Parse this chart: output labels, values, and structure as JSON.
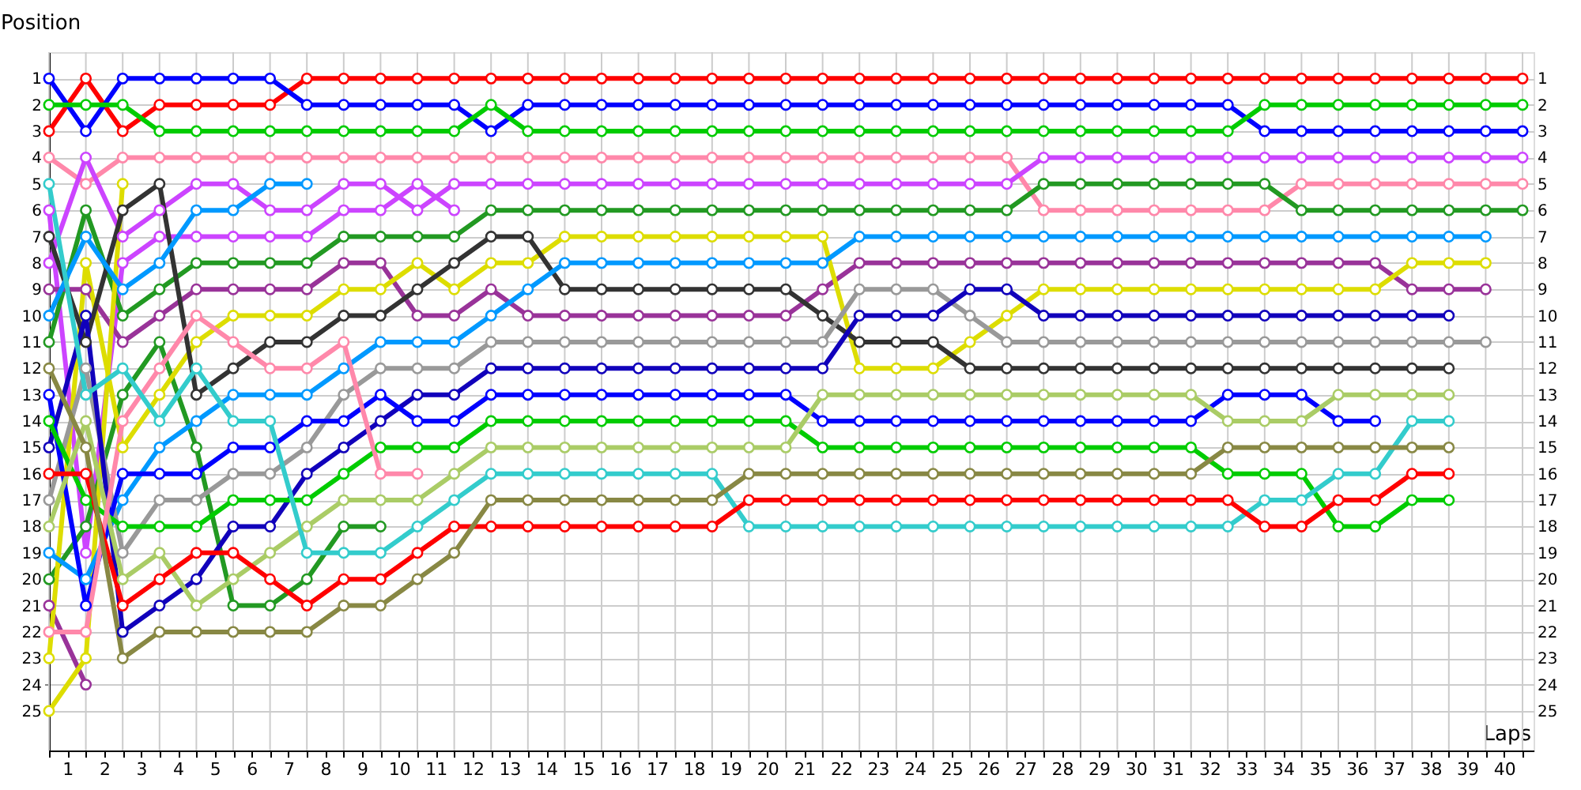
{
  "chart_data": {
    "type": "line",
    "xlabel": "Laps",
    "ylabel": "Position",
    "x": [
      0,
      1,
      2,
      3,
      4,
      5,
      6,
      7,
      8,
      9,
      10,
      11,
      12,
      13,
      14,
      15,
      16,
      17,
      18,
      19,
      20,
      21,
      22,
      23,
      24,
      25,
      26,
      27,
      28,
      29,
      30,
      31,
      32,
      33,
      34,
      35,
      36,
      37,
      38,
      39,
      40
    ],
    "xlim": [
      0,
      40.3
    ],
    "ylim": [
      26.5,
      0
    ],
    "y2lim": [
      26.5,
      0
    ],
    "xticks": [
      {
        "value": 0,
        "label": null
      },
      {
        "value": 1,
        "label": null
      },
      {
        "value": 2,
        "label": null
      },
      {
        "value": 3,
        "label": null
      },
      {
        "value": 4,
        "label": null
      },
      {
        "value": 5,
        "label": null
      },
      {
        "value": 6,
        "label": null
      },
      {
        "value": 7,
        "label": null
      },
      {
        "value": 8,
        "label": null
      },
      {
        "value": 9,
        "label": null
      },
      {
        "value": 10,
        "label": null
      },
      {
        "value": 11,
        "label": null
      },
      {
        "value": 12,
        "label": null
      },
      {
        "value": 13,
        "label": null
      },
      {
        "value": 14,
        "label": null
      },
      {
        "value": 15,
        "label": null
      },
      {
        "value": 16,
        "label": null
      },
      {
        "value": 17,
        "label": null
      },
      {
        "value": 18,
        "label": null
      },
      {
        "value": 19,
        "label": null
      },
      {
        "value": 20,
        "label": null
      },
      {
        "value": 21,
        "label": null
      },
      {
        "value": 22,
        "label": null
      },
      {
        "value": 23,
        "label": null
      },
      {
        "value": 24,
        "label": null
      },
      {
        "value": 25,
        "label": null
      },
      {
        "value": 26,
        "label": null
      },
      {
        "value": 27,
        "label": null
      },
      {
        "value": 28,
        "label": null
      },
      {
        "value": 29,
        "label": null
      },
      {
        "value": 30,
        "label": null
      },
      {
        "value": 31,
        "label": null
      },
      {
        "value": 32,
        "label": null
      },
      {
        "value": 33,
        "label": null
      },
      {
        "value": 34,
        "label": null
      },
      {
        "value": 35,
        "label": null
      },
      {
        "value": 36,
        "label": null
      },
      {
        "value": 37,
        "label": null
      },
      {
        "value": 38,
        "label": null
      },
      {
        "value": 39,
        "label": null
      },
      {
        "value": 40,
        "label": null
      },
      {
        "value": 0.5,
        "label": "1"
      },
      {
        "value": 1.5,
        "label": "2"
      },
      {
        "value": 2.5,
        "label": "3"
      },
      {
        "value": 3.5,
        "label": "4"
      },
      {
        "value": 4.5,
        "label": "5"
      },
      {
        "value": 5.5,
        "label": "6"
      },
      {
        "value": 6.5,
        "label": "7"
      },
      {
        "value": 7.5,
        "label": "8"
      },
      {
        "value": 8.5,
        "label": "9"
      },
      {
        "value": 9.5,
        "label": "10"
      },
      {
        "value": 10.5,
        "label": "11"
      },
      {
        "value": 11.5,
        "label": "12"
      },
      {
        "value": 12.5,
        "label": "13"
      },
      {
        "value": 13.5,
        "label": "14"
      },
      {
        "value": 14.5,
        "label": "15"
      },
      {
        "value": 15.5,
        "label": "16"
      },
      {
        "value": 16.5,
        "label": "17"
      },
      {
        "value": 17.5,
        "label": "18"
      },
      {
        "value": 18.5,
        "label": "19"
      },
      {
        "value": 19.5,
        "label": "20"
      },
      {
        "value": 20.5,
        "label": "21"
      },
      {
        "value": 21.5,
        "label": "22"
      },
      {
        "value": 22.5,
        "label": "23"
      },
      {
        "value": 23.5,
        "label": "24"
      },
      {
        "value": 24.5,
        "label": "25"
      },
      {
        "value": 25.5,
        "label": "26"
      },
      {
        "value": 26.5,
        "label": "27"
      },
      {
        "value": 27.5,
        "label": "28"
      },
      {
        "value": 28.5,
        "label": "29"
      },
      {
        "value": 29.5,
        "label": "30"
      },
      {
        "value": 30.5,
        "label": "31"
      },
      {
        "value": 31.5,
        "label": "32"
      },
      {
        "value": 32.5,
        "label": "33"
      },
      {
        "value": 33.5,
        "label": "34"
      },
      {
        "value": 34.5,
        "label": "35"
      },
      {
        "value": 35.5,
        "label": "36"
      },
      {
        "value": 36.5,
        "label": "37"
      },
      {
        "value": 37.5,
        "label": "38"
      },
      {
        "value": 38.5,
        "label": "39"
      },
      {
        "value": 39.5,
        "label": "40"
      }
    ],
    "yticks": [
      1,
      2,
      3,
      4,
      5,
      6,
      7,
      8,
      9,
      10,
      11,
      12,
      13,
      14,
      15,
      16,
      17,
      18,
      19,
      20,
      21,
      22,
      23,
      24,
      25
    ],
    "y2ticks": [
      1,
      2,
      3,
      4,
      5,
      6,
      7,
      8,
      9,
      10,
      11,
      12,
      13,
      14,
      15,
      16,
      17,
      18,
      19,
      20,
      21,
      22,
      23,
      24,
      25
    ],
    "grid": true,
    "legend": false,
    "marker": "circle",
    "line_style": "solid",
    "series": [
      {
        "color": "#ff0000",
        "values": [
          3,
          1,
          3,
          2,
          2,
          2,
          2,
          1,
          1,
          1,
          1,
          1,
          1,
          1,
          1,
          1,
          1,
          1,
          1,
          1,
          1,
          1,
          1,
          1,
          1,
          1,
          1,
          1,
          1,
          1,
          1,
          1,
          1,
          1,
          1,
          1,
          1,
          1,
          1,
          1,
          1
        ]
      },
      {
        "color": "#0000ff",
        "values": [
          1,
          3,
          1,
          1,
          1,
          1,
          1,
          2,
          2,
          2,
          2,
          2,
          3,
          2,
          2,
          2,
          2,
          2,
          2,
          2,
          2,
          2,
          2,
          2,
          2,
          2,
          2,
          2,
          2,
          2,
          2,
          2,
          2,
          3,
          3,
          3,
          3,
          3,
          3,
          3,
          3
        ]
      },
      {
        "color": "#00cc00",
        "values": [
          2,
          2,
          2,
          3,
          3,
          3,
          3,
          3,
          3,
          3,
          3,
          3,
          2,
          3,
          3,
          3,
          3,
          3,
          3,
          3,
          3,
          3,
          3,
          3,
          3,
          3,
          3,
          3,
          3,
          3,
          3,
          3,
          3,
          2,
          2,
          2,
          2,
          2,
          2,
          2,
          2
        ]
      },
      {
        "color": "#ff88aa",
        "values": [
          4,
          5,
          4,
          4,
          4,
          4,
          4,
          4,
          4,
          4,
          4,
          4,
          4,
          4,
          4,
          4,
          4,
          4,
          4,
          4,
          4,
          4,
          4,
          4,
          4,
          4,
          4,
          6,
          6,
          6,
          6,
          6,
          6,
          6,
          5,
          5,
          5,
          5,
          5,
          5,
          5
        ]
      },
      {
        "color": "#cc44ff",
        "values": [
          8,
          4,
          7,
          6,
          5,
          5,
          6,
          6,
          5,
          5,
          6,
          5,
          5,
          5,
          5,
          5,
          5,
          5,
          5,
          5,
          5,
          5,
          5,
          5,
          5,
          5,
          5,
          4,
          4,
          4,
          4,
          4,
          4,
          4,
          4,
          4,
          4,
          4,
          4,
          4,
          4
        ]
      },
      {
        "color": "#cc44ff",
        "values": [
          6,
          19,
          8,
          7,
          7,
          7,
          7,
          7,
          6,
          6,
          5,
          6,
          null,
          null,
          null,
          null,
          null,
          null,
          null,
          null,
          null,
          null,
          null,
          null,
          null,
          null,
          null,
          null,
          null,
          null,
          null,
          null,
          null,
          null,
          null,
          null,
          null,
          null,
          null,
          null,
          null
        ]
      },
      {
        "color": "#229922",
        "values": [
          11,
          6,
          10,
          9,
          8,
          8,
          8,
          8,
          7,
          7,
          7,
          7,
          6,
          6,
          6,
          6,
          6,
          6,
          6,
          6,
          6,
          6,
          6,
          6,
          6,
          6,
          6,
          5,
          5,
          5,
          5,
          5,
          5,
          5,
          6,
          6,
          6,
          6,
          6,
          6,
          6
        ]
      },
      {
        "color": "#229922",
        "values": [
          20,
          18,
          13,
          11,
          15,
          21,
          21,
          20,
          18,
          18,
          null,
          null,
          null,
          null,
          null,
          null,
          null,
          null,
          null,
          null,
          null,
          null,
          null,
          null,
          null,
          null,
          null,
          null,
          null,
          null,
          null,
          null,
          null,
          null,
          null,
          null,
          null,
          null,
          null,
          null,
          null
        ]
      },
      {
        "color": "#993399",
        "values": [
          9,
          9,
          11,
          10,
          9,
          9,
          9,
          9,
          8,
          8,
          10,
          10,
          9,
          10,
          10,
          10,
          10,
          10,
          10,
          10,
          10,
          9,
          8,
          8,
          8,
          8,
          8,
          8,
          8,
          8,
          8,
          8,
          8,
          8,
          8,
          8,
          8,
          9,
          9,
          9,
          null
        ]
      },
      {
        "color": "#993399",
        "values": [
          21,
          24,
          null,
          null,
          null,
          null,
          null,
          null,
          null,
          null,
          null,
          null,
          null,
          null,
          null,
          null,
          null,
          null,
          null,
          null,
          null,
          null,
          null,
          null,
          null,
          null,
          null,
          null,
          null,
          null,
          null,
          null,
          null,
          null,
          null,
          null,
          null,
          null,
          null,
          null,
          null
        ]
      },
      {
        "color": "#dddd00",
        "values": [
          23,
          8,
          15,
          13,
          11,
          10,
          10,
          10,
          9,
          9,
          8,
          9,
          8,
          8,
          7,
          7,
          7,
          7,
          7,
          7,
          7,
          7,
          12,
          12,
          12,
          11,
          10,
          9,
          9,
          9,
          9,
          9,
          9,
          9,
          9,
          9,
          9,
          8,
          8,
          8,
          null
        ]
      },
      {
        "color": "#dddd00",
        "values": [
          25,
          23,
          5,
          null,
          null,
          null,
          null,
          null,
          null,
          null,
          null,
          null,
          null,
          null,
          null,
          null,
          null,
          null,
          null,
          null,
          null,
          null,
          null,
          null,
          null,
          null,
          null,
          null,
          null,
          null,
          null,
          null,
          null,
          null,
          null,
          null,
          null,
          null,
          null,
          null,
          null
        ]
      },
      {
        "color": "#333333",
        "values": [
          7,
          11,
          6,
          5,
          13,
          12,
          11,
          11,
          10,
          10,
          9,
          8,
          7,
          7,
          9,
          9,
          9,
          9,
          9,
          9,
          9,
          10,
          11,
          11,
          11,
          12,
          12,
          12,
          12,
          12,
          12,
          12,
          12,
          12,
          12,
          12,
          12,
          12,
          12,
          null,
          null
        ]
      },
      {
        "color": "#0099ff",
        "values": [
          10,
          7,
          9,
          8,
          6,
          6,
          5,
          5,
          null,
          null,
          null,
          null,
          null,
          null,
          null,
          null,
          null,
          null,
          null,
          null,
          null,
          null,
          null,
          null,
          null,
          null,
          null,
          null,
          null,
          null,
          null,
          null,
          null,
          null,
          null,
          null,
          null,
          null,
          null,
          null,
          null
        ]
      },
      {
        "color": "#0099ff",
        "values": [
          19,
          20,
          17,
          15,
          14,
          13,
          13,
          13,
          12,
          11,
          11,
          11,
          10,
          9,
          8,
          8,
          8,
          8,
          8,
          8,
          8,
          8,
          7,
          7,
          7,
          7,
          7,
          7,
          7,
          7,
          7,
          7,
          7,
          7,
          7,
          7,
          7,
          7,
          7,
          7,
          null
        ]
      },
      {
        "color": "#999999",
        "values": [
          17,
          12,
          19,
          17,
          17,
          16,
          16,
          15,
          13,
          12,
          12,
          12,
          11,
          11,
          11,
          11,
          11,
          11,
          11,
          11,
          11,
          11,
          9,
          9,
          9,
          10,
          11,
          11,
          11,
          11,
          11,
          11,
          11,
          11,
          11,
          11,
          11,
          11,
          11,
          11,
          null
        ]
      },
      {
        "color": "#1100bb",
        "values": [
          15,
          10,
          22,
          21,
          20,
          18,
          18,
          16,
          15,
          14,
          13,
          13,
          12,
          12,
          12,
          12,
          12,
          12,
          12,
          12,
          12,
          12,
          10,
          10,
          10,
          9,
          9,
          10,
          10,
          10,
          10,
          10,
          10,
          10,
          10,
          10,
          10,
          10,
          10,
          null,
          null
        ]
      },
      {
        "color": "#0000ff",
        "values": [
          13,
          21,
          16,
          16,
          16,
          15,
          15,
          14,
          14,
          13,
          14,
          14,
          13,
          13,
          13,
          13,
          13,
          13,
          13,
          13,
          13,
          14,
          14,
          14,
          14,
          14,
          14,
          14,
          14,
          14,
          14,
          14,
          13,
          13,
          13,
          14,
          14,
          null,
          null,
          null,
          null
        ]
      },
      {
        "color": "#00cc00",
        "values": [
          14,
          17,
          18,
          18,
          18,
          17,
          17,
          17,
          16,
          15,
          15,
          15,
          14,
          14,
          14,
          14,
          14,
          14,
          14,
          14,
          14,
          15,
          15,
          15,
          15,
          15,
          15,
          15,
          15,
          15,
          15,
          15,
          16,
          16,
          16,
          18,
          18,
          17,
          17,
          null,
          null
        ]
      },
      {
        "color": "#aacc66",
        "values": [
          18,
          14,
          20,
          19,
          21,
          20,
          19,
          18,
          17,
          17,
          17,
          16,
          15,
          15,
          15,
          15,
          15,
          15,
          15,
          15,
          15,
          13,
          13,
          13,
          13,
          13,
          13,
          13,
          13,
          13,
          13,
          13,
          14,
          14,
          14,
          13,
          13,
          13,
          13,
          null,
          null
        ]
      },
      {
        "color": "#ff88aa",
        "values": [
          22,
          22,
          14,
          12,
          10,
          11,
          12,
          12,
          11,
          16,
          16,
          null,
          null,
          null,
          null,
          null,
          null,
          null,
          null,
          null,
          null,
          null,
          null,
          null,
          null,
          null,
          null,
          null,
          null,
          null,
          null,
          null,
          null,
          null,
          null,
          null,
          null,
          null,
          null,
          null,
          null
        ]
      },
      {
        "color": "#33cccc",
        "values": [
          5,
          13,
          12,
          14,
          12,
          14,
          14,
          19,
          19,
          19,
          18,
          17,
          16,
          16,
          16,
          16,
          16,
          16,
          16,
          18,
          18,
          18,
          18,
          18,
          18,
          18,
          18,
          18,
          18,
          18,
          18,
          18,
          18,
          17,
          17,
          16,
          16,
          14,
          14,
          null,
          null
        ]
      },
      {
        "color": "#ff0000",
        "values": [
          16,
          16,
          21,
          20,
          19,
          19,
          20,
          21,
          20,
          20,
          19,
          18,
          18,
          18,
          18,
          18,
          18,
          18,
          18,
          17,
          17,
          17,
          17,
          17,
          17,
          17,
          17,
          17,
          17,
          17,
          17,
          17,
          17,
          18,
          18,
          17,
          17,
          16,
          16,
          null,
          null
        ]
      },
      {
        "color": "#888844",
        "values": [
          12,
          15,
          23,
          22,
          22,
          22,
          22,
          22,
          21,
          21,
          20,
          19,
          17,
          17,
          17,
          17,
          17,
          17,
          17,
          16,
          16,
          16,
          16,
          16,
          16,
          16,
          16,
          16,
          16,
          16,
          16,
          16,
          15,
          15,
          15,
          15,
          15,
          15,
          15,
          null,
          null
        ]
      }
    ]
  }
}
